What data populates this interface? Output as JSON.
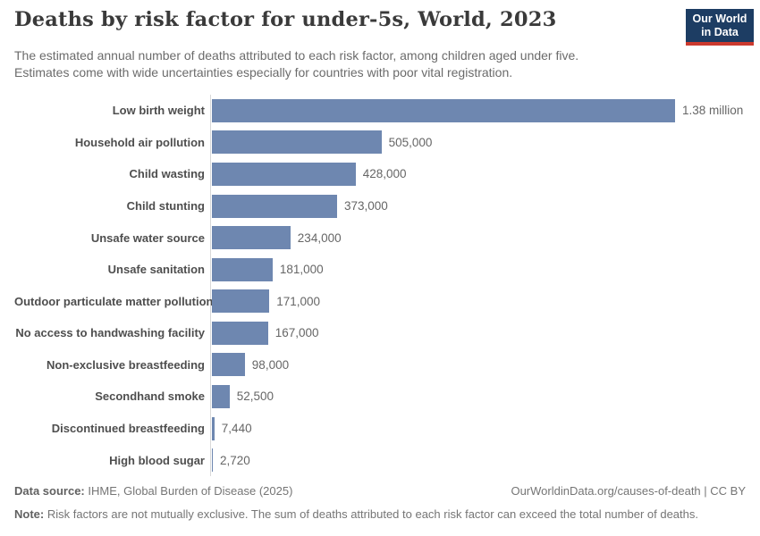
{
  "header": {
    "title": "Deaths by risk factor for under-5s, World, 2023",
    "subtitle_line1": "The estimated annual number of deaths attributed to each risk factor, among children aged under five.",
    "subtitle_line2": "Estimates come with wide uncertainties especially for countries with poor vital registration.",
    "logo": {
      "line1": "Our World",
      "line2": "in Data"
    }
  },
  "chart_data": {
    "type": "bar",
    "orientation": "horizontal",
    "title": "Deaths by risk factor for under-5s, World, 2023",
    "categories": [
      "Low birth weight",
      "Household air pollution",
      "Child wasting",
      "Child stunting",
      "Unsafe water source",
      "Unsafe sanitation",
      "Outdoor particulate matter pollution",
      "No access to handwashing facility",
      "Non-exclusive breastfeeding",
      "Secondhand smoke",
      "Discontinued breastfeeding",
      "High blood sugar"
    ],
    "values": [
      1380000,
      505000,
      428000,
      373000,
      234000,
      181000,
      171000,
      167000,
      98000,
      52500,
      7440,
      2720
    ],
    "value_labels": [
      "1.38 million",
      "505,000",
      "428,000",
      "373,000",
      "234,000",
      "181,000",
      "171,000",
      "167,000",
      "98,000",
      "52,500",
      "7,440",
      "2,720"
    ],
    "xlim": [
      0,
      1380000
    ],
    "grid": false,
    "legend": "none",
    "bar_color": "#6e87b0"
  },
  "footer": {
    "data_source_label": "Data source:",
    "data_source": "IHME, Global Burden of Disease (2025)",
    "url_text": "OurWorldinData.org/causes-of-death | CC BY",
    "note_label": "Note:",
    "note": "Risk factors are not mutually exclusive. The sum of deaths attributed to each risk factor can exceed the total number of deaths."
  },
  "colors": {
    "bar": "#6e87b0",
    "axis_line": "#d9d9d9",
    "logo_background": "#1d3d63",
    "logo_accent": "#cc3a2e",
    "title_text": "#3a3a3a",
    "body_text": "#6b6b6b"
  }
}
